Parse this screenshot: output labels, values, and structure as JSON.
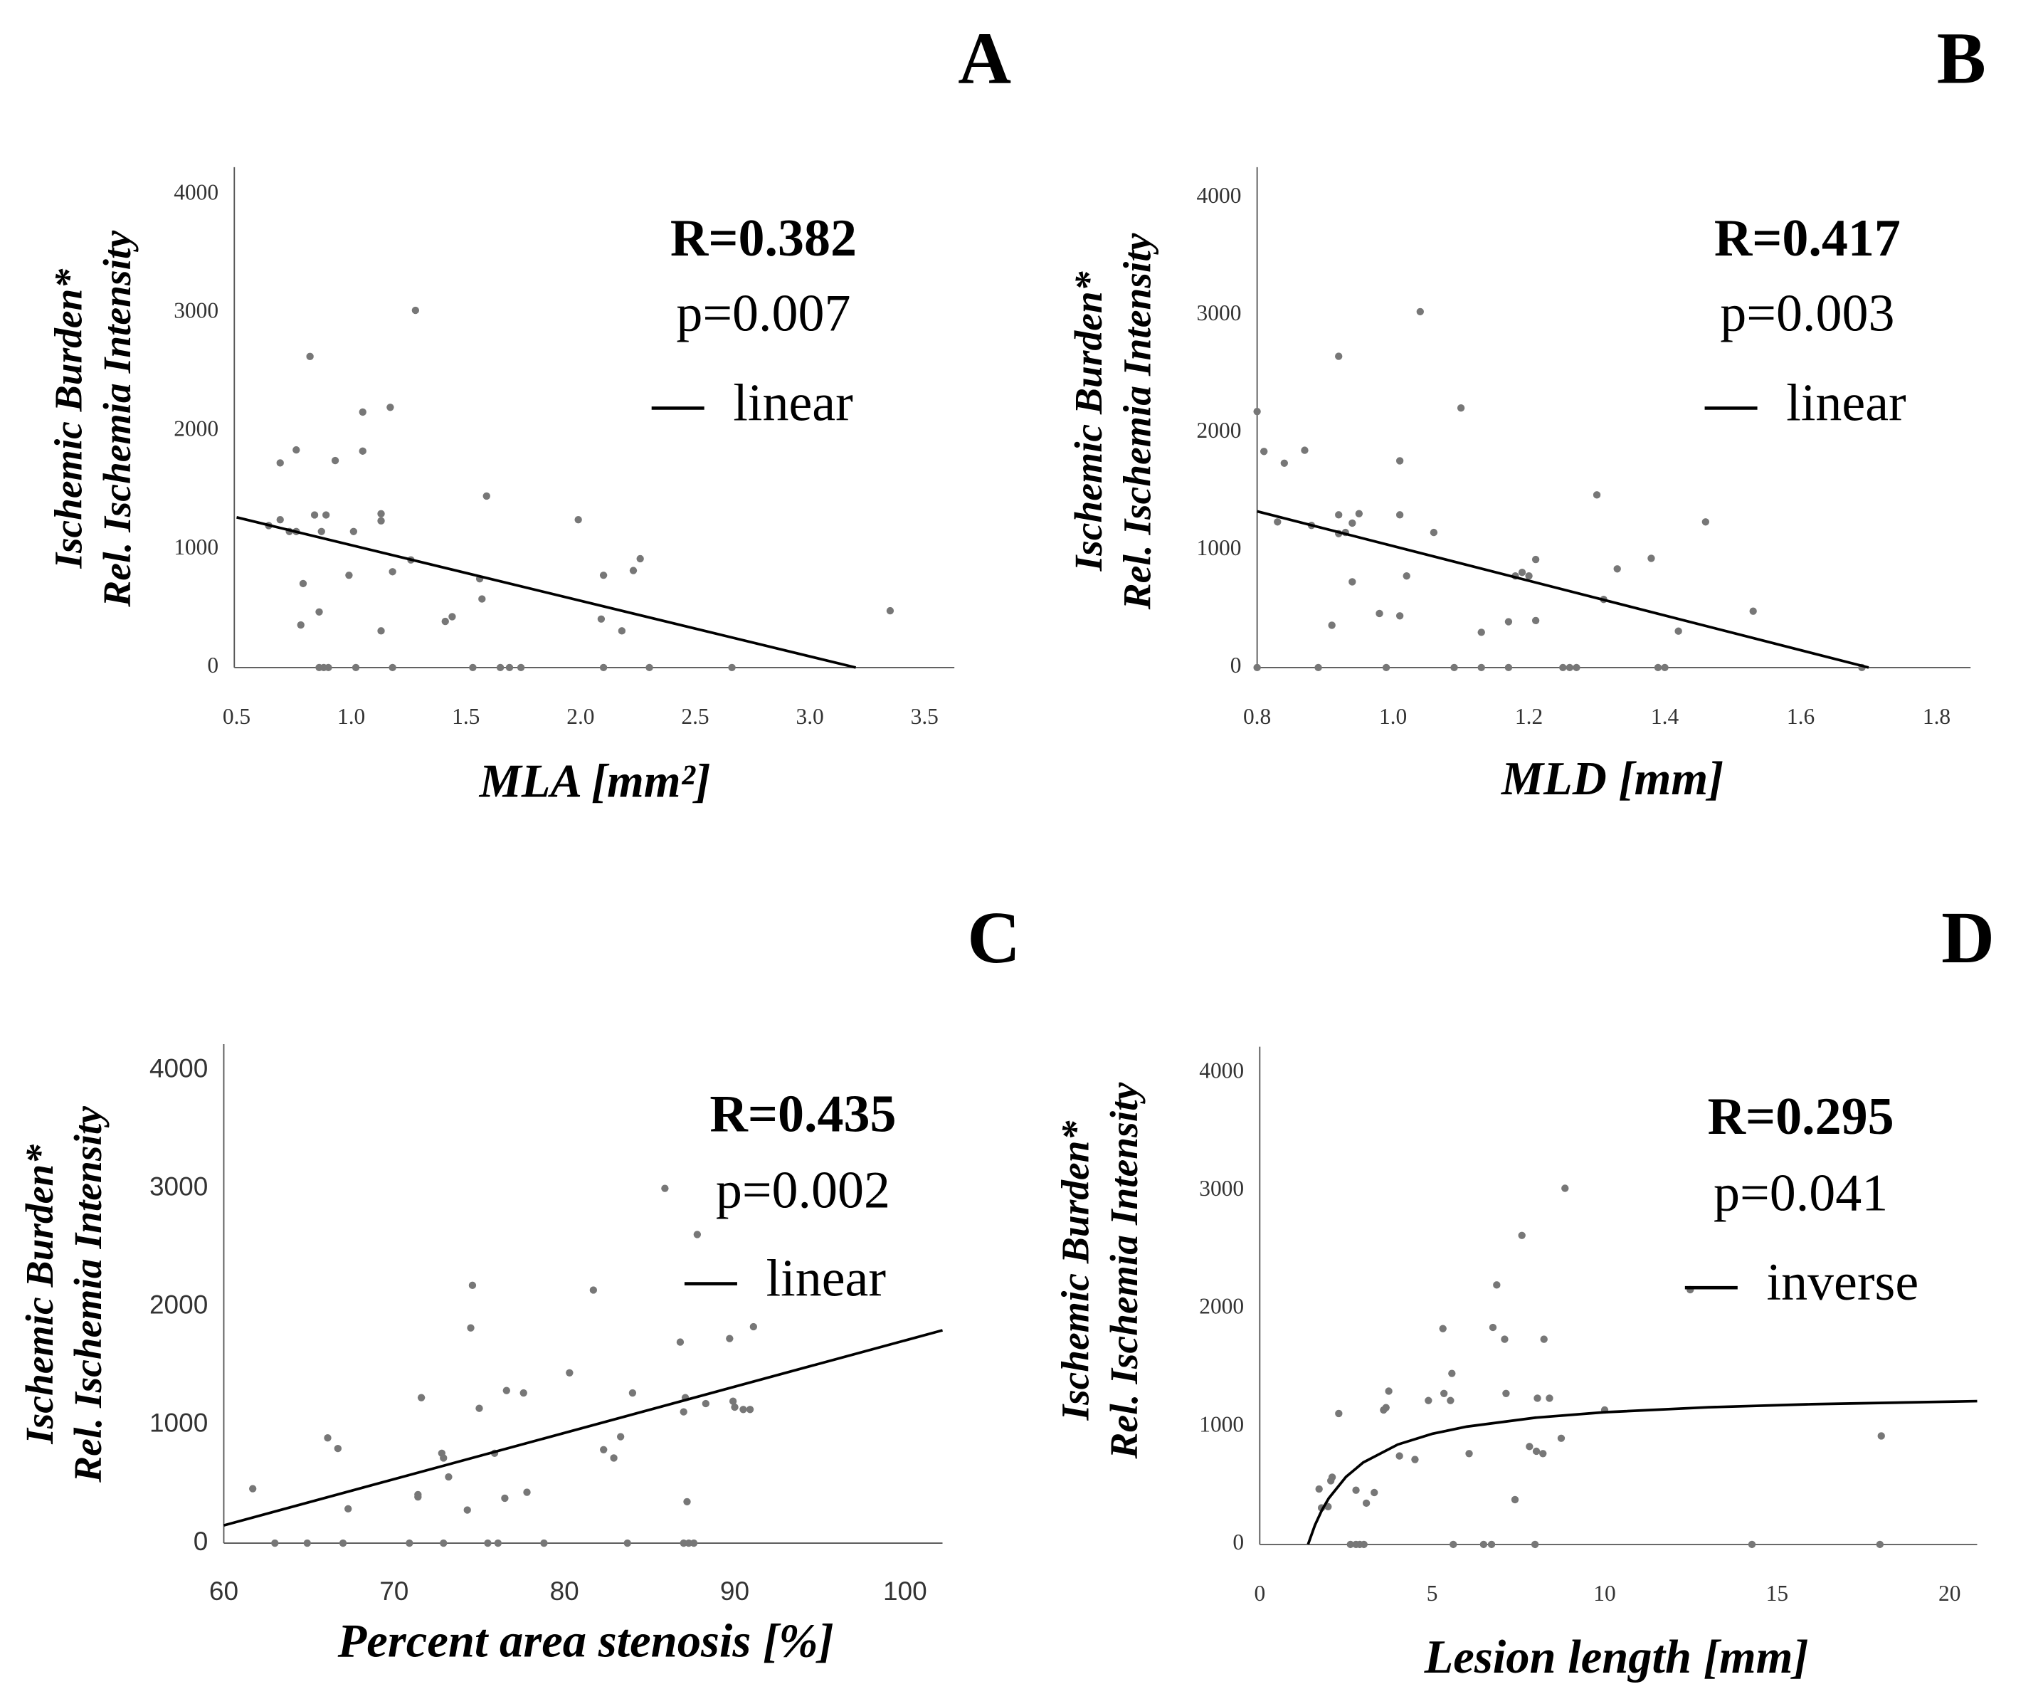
{
  "chart_data": [
    {
      "type": "scatter",
      "panel": "A",
      "x_label": "MLA [mm²]",
      "y_label": [
        "Ischemic Burden*",
        "Rel. Ischemia Intensity"
      ],
      "annotations": [
        "R=0.382",
        "p=0.007"
      ],
      "xlim": [
        0.49,
        3.63
      ],
      "ylim": [
        0,
        4230
      ],
      "xticks": [
        0.5,
        {
          "value": 1,
          "label": "1.0"
        },
        1.5,
        {
          "value": 2,
          "label": "2.0"
        },
        2.5,
        {
          "value": 3,
          "label": "3.0"
        },
        3.5
      ],
      "yticks": [
        0,
        1000,
        2000,
        3000,
        4000
      ],
      "points": {
        "color": "#777777",
        "x": [
          0.64,
          0.69,
          0.69,
          0.73,
          0.76,
          0.76,
          0.78,
          0.79,
          0.82,
          0.84,
          0.86,
          0.87,
          0.89,
          0.86,
          0.88,
          0.9,
          0.93,
          0.99,
          1.01,
          1.02,
          1.05,
          1.05,
          1.13,
          1.13,
          1.13,
          1.17,
          1.18,
          1.18,
          1.26,
          1.28,
          1.41,
          1.44,
          1.53,
          1.56,
          1.57,
          1.59,
          1.65,
          1.69,
          1.74,
          1.99,
          2.1,
          2.09,
          2.1,
          2.18,
          2.23,
          2.26,
          2.3,
          2.66,
          3.35
        ],
        "y": [
          1200,
          1730,
          1250,
          1150,
          1840,
          1150,
          360,
          710,
          2630,
          1290,
          470,
          1150,
          1290,
          0,
          0,
          0,
          1750,
          780,
          1150,
          0,
          2160,
          1830,
          1240,
          1300,
          310,
          2200,
          810,
          0,
          910,
          3020,
          390,
          430,
          0,
          750,
          580,
          1450,
          0,
          0,
          0,
          1250,
          780,
          410,
          0,
          310,
          820,
          920,
          0,
          0,
          480
        ]
      },
      "fit": {
        "name": "linear",
        "color": "#000000",
        "x": [
          0.5,
          3.2
        ],
        "values": [
          1270,
          0
        ]
      }
    },
    {
      "type": "scatter",
      "panel": "B",
      "x_label": "MLD [mm]",
      "y_label": [
        "Ischemic Burden*",
        "Rel. Ischemia Intensity"
      ],
      "annotations": [
        "R=0.417",
        "p=0.003"
      ],
      "xlim": [
        0.8,
        1.85
      ],
      "ylim": [
        0,
        4260
      ],
      "xticks": [
        0.8,
        {
          "value": 1,
          "label": "1.0"
        },
        1.2,
        1.4,
        1.6,
        1.8
      ],
      "yticks": [
        0,
        1000,
        2000,
        3000,
        4000
      ],
      "points": {
        "color": "#777777",
        "x": [
          0.8,
          0.8,
          0.81,
          0.83,
          0.84,
          0.87,
          0.88,
          0.89,
          0.91,
          0.92,
          0.92,
          0.92,
          0.93,
          0.94,
          0.94,
          0.95,
          0.98,
          0.99,
          1.01,
          1.01,
          1.01,
          1.02,
          1.04,
          1.06,
          1.09,
          1.1,
          1.13,
          1.13,
          1.17,
          1.17,
          1.18,
          1.19,
          1.2,
          1.21,
          1.21,
          1.25,
          1.26,
          1.27,
          1.3,
          1.31,
          1.33,
          1.38,
          1.39,
          1.4,
          1.42,
          1.46,
          1.53,
          1.69
        ],
        "y": [
          2180,
          0,
          1840,
          1240,
          1740,
          1850,
          1210,
          0,
          360,
          1140,
          2650,
          1300,
          1150,
          730,
          1230,
          1310,
          460,
          0,
          1300,
          1760,
          440,
          780,
          3030,
          1150,
          0,
          2210,
          300,
          0,
          390,
          0,
          780,
          810,
          780,
          400,
          920,
          0,
          0,
          0,
          1470,
          580,
          840,
          930,
          0,
          0,
          310,
          1240,
          480,
          0
        ]
      },
      "fit": {
        "name": "linear",
        "color": "#000000",
        "x": [
          0.8,
          1.7
        ],
        "values": [
          1330,
          0
        ]
      }
    },
    {
      "type": "scatter",
      "panel": "C",
      "x_label": "Percent area stenosis [%]",
      "y_label": [
        "Ischemic Burden*",
        "Rel. Ischemia Intensity"
      ],
      "annotations": [
        "R=0.435",
        "p=0.002"
      ],
      "xlim": [
        60,
        102.2
      ],
      "ylim": [
        0,
        4220
      ],
      "xticks": [
        60,
        70,
        80,
        90,
        100
      ],
      "yticks": [
        0,
        1000,
        2000,
        3000,
        4000
      ],
      "points": {
        "color": "#777777",
        "x": [
          61.7,
          63,
          64.9,
          66.1,
          66.7,
          67,
          67.3,
          70.9,
          71.4,
          71.4,
          71.6,
          72.8,
          72.9,
          72.9,
          73.2,
          74.3,
          74.6,
          74.5,
          75,
          75.5,
          75.9,
          76.1,
          76.5,
          76.6,
          77.6,
          77.8,
          78.8,
          80.3,
          81.7,
          82.3,
          82.9,
          83.3,
          83.7,
          84,
          85.9,
          86.8,
          87,
          87.1,
          87.2,
          87,
          87.3,
          87.6,
          87.8,
          88.3,
          89.7,
          89.9,
          90,
          90.5,
          90.9,
          91.1
        ],
        "y": [
          460,
          0,
          0,
          890,
          800,
          0,
          290,
          0,
          390,
          410,
          1230,
          760,
          720,
          0,
          560,
          280,
          2180,
          1820,
          1140,
          0,
          760,
          0,
          380,
          1290,
          1270,
          430,
          0,
          1440,
          2140,
          790,
          720,
          900,
          0,
          1270,
          3000,
          1700,
          1110,
          1230,
          350,
          0,
          0,
          0,
          2610,
          1180,
          1730,
          1200,
          1150,
          1130,
          1130,
          1830
        ]
      },
      "fit": {
        "name": "linear",
        "color": "#000000",
        "x": [
          60,
          102.2
        ],
        "values": [
          150,
          1800
        ]
      }
    },
    {
      "type": "scatter",
      "panel": "D",
      "x_label": "Lesion length [mm]",
      "y_label": [
        "Ischemic Burden*",
        "Rel. Ischemia Intensity"
      ],
      "annotations": [
        "R=0.295",
        "p=0.041"
      ],
      "xlim": [
        0,
        20.8
      ],
      "ylim": [
        0,
        4220
      ],
      "xticks": [
        0,
        5,
        10,
        15,
        20
      ],
      "yticks": [
        0,
        1000,
        2000,
        3000,
        4000
      ],
      "points": {
        "color": "#777777",
        "x": [
          1.72,
          1.79,
          1.98,
          2.06,
          2.1,
          2.29,
          2.63,
          2.79,
          2.79,
          2.9,
          3.02,
          3.09,
          3.32,
          3.59,
          3.66,
          3.74,
          4.05,
          4.5,
          4.89,
          5.31,
          5.34,
          5.53,
          5.57,
          5.61,
          6.07,
          6.49,
          6.72,
          6.76,
          6.87,
          7.1,
          7.14,
          7.4,
          7.6,
          7.82,
          7.98,
          8.02,
          8.24,
          8.05,
          8.21,
          8.4,
          8.74,
          8.85,
          10,
          12.48,
          14.27,
          18.02,
          17.98
        ],
        "y": [
          470,
          310,
          320,
          540,
          570,
          1110,
          0,
          460,
          0,
          0,
          0,
          350,
          440,
          1140,
          1160,
          1300,
          750,
          720,
          1220,
          1830,
          1280,
          1220,
          1450,
          0,
          770,
          0,
          0,
          1840,
          2200,
          1740,
          1280,
          380,
          2620,
          830,
          0,
          790,
          1740,
          1240,
          770,
          1240,
          900,
          3020,
          1140,
          2160,
          0,
          920,
          0
        ]
      },
      "fit": {
        "name": "inverse",
        "color": "#000000",
        "x": [
          1.4,
          1.6,
          1.8,
          2,
          2.5,
          3,
          4,
          5,
          6,
          8,
          10,
          13,
          16,
          20.8
        ],
        "values": [
          0,
          163,
          290,
          391,
          573,
          695,
          847,
          938,
          999,
          1075,
          1121,
          1163,
          1189,
          1215
        ]
      }
    }
  ]
}
